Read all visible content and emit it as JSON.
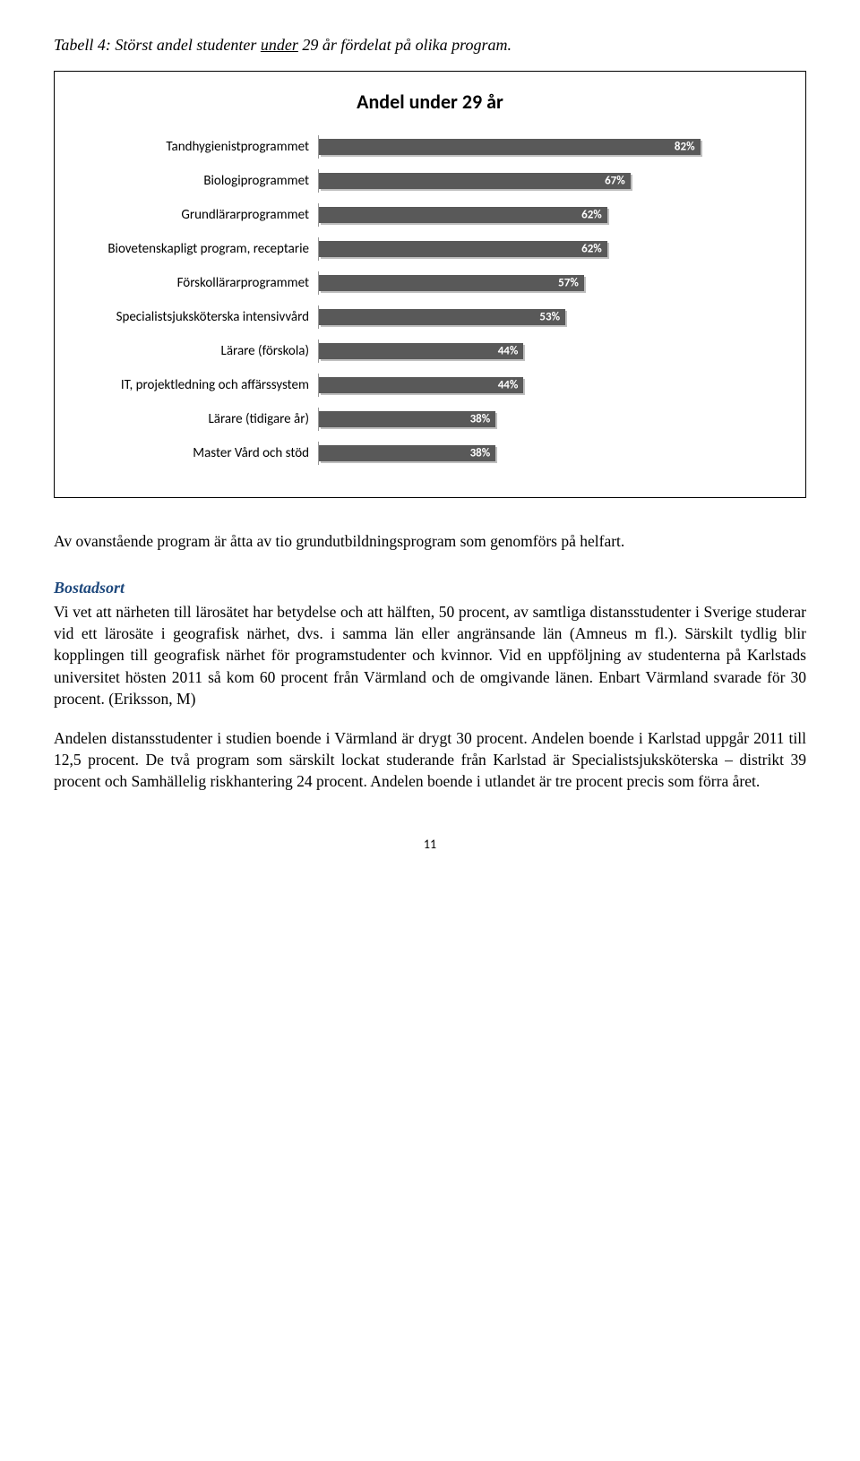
{
  "caption": {
    "prefix": "Tabell 4: Störst andel studenter ",
    "underlined": "under",
    "suffix": " 29 år fördelat på olika program."
  },
  "chart": {
    "title": "Andel under 29 år",
    "bar_color": "#595959",
    "label_text_color": "#ffffff",
    "max_value": 100,
    "rows": [
      {
        "label": "Tandhygienistprogrammet",
        "value": 82,
        "display": "82%"
      },
      {
        "label": "Biologiprogrammet",
        "value": 67,
        "display": "67%"
      },
      {
        "label": "Grundlärarprogrammet",
        "value": 62,
        "display": "62%"
      },
      {
        "label": "Biovetenskapligt program, receptarie",
        "value": 62,
        "display": "62%"
      },
      {
        "label": "Förskollärarprogrammet",
        "value": 57,
        "display": "57%"
      },
      {
        "label": "Specialistsjuksköterska intensivvård",
        "value": 53,
        "display": "53%"
      },
      {
        "label": "Lärare (förskola)",
        "value": 44,
        "display": "44%"
      },
      {
        "label": "IT, projektledning och affärssystem",
        "value": 44,
        "display": "44%"
      },
      {
        "label": "Lärare (tidigare år)",
        "value": 38,
        "display": "38%"
      },
      {
        "label": "Master Vård och stöd",
        "value": 38,
        "display": "38%"
      }
    ]
  },
  "paragraphs": {
    "p1": "Av ovanstående program är åtta av tio grundutbildningsprogram som genomförs på helfart.",
    "heading": "Bostadsort",
    "p2": "Vi vet att närheten till lärosätet har betydelse och att hälften, 50 procent, av samtliga distansstudenter i Sverige studerar vid ett lärosäte i geografisk närhet, dvs. i samma län eller angränsande län (Amneus m fl.). Särskilt tydlig blir kopplingen till geografisk närhet för programstudenter och kvinnor. Vid en uppföljning av studenterna på Karlstads universitet hösten 2011 så kom 60 procent från Värmland och de omgivande länen. Enbart Värmland svarade för 30 procent. (Eriksson, M)",
    "p3": "Andelen distansstudenter i studien boende i Värmland är drygt 30 procent. Andelen boende i Karlstad uppgår 2011 till 12,5 procent. De två program som särskilt lockat studerande från Karlstad är Specialistsjuksköterska – distrikt 39 procent och Samhällelig riskhantering 24 procent. Andelen boende i utlandet är tre procent precis som förra året."
  },
  "page_number": "11",
  "heading_color": "#1f497d"
}
